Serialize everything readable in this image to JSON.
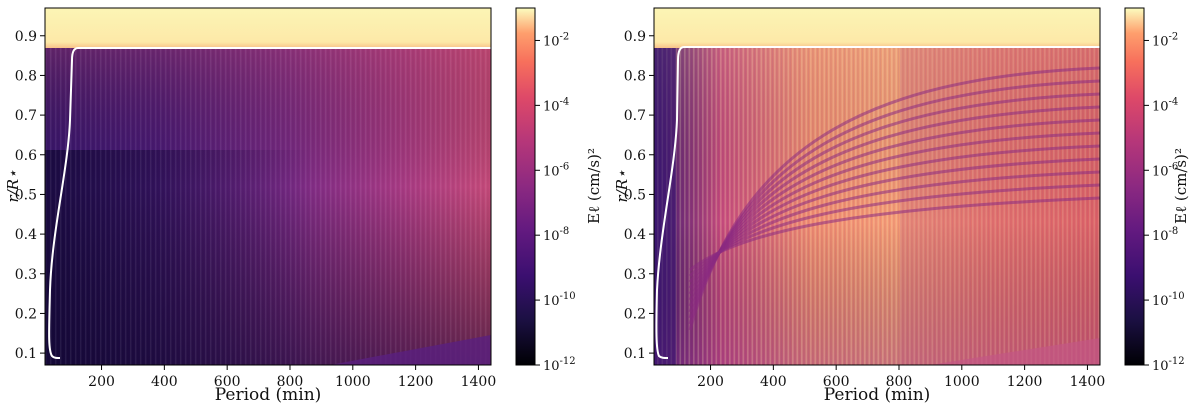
{
  "chart_data": [
    {
      "type": "heatmap",
      "panel": "left",
      "xlabel": "Period (min)",
      "ylabel": "r/R⋆",
      "xlim": [
        20,
        1440
      ],
      "ylim": [
        0.07,
        0.97
      ],
      "xticks": [
        200,
        400,
        600,
        800,
        1000,
        1200,
        1400
      ],
      "yticks": [
        0.1,
        0.2,
        0.3,
        0.4,
        0.5,
        0.6,
        0.7,
        0.8,
        0.9
      ],
      "colorbar": {
        "label": "Eℓ (cm/s)²",
        "scale": "log",
        "ticks": [
          "10-2",
          "10-4",
          "10-6",
          "10-8",
          "10-10",
          "10-12"
        ],
        "range_exp": [
          -12,
          -1
        ]
      },
      "white_curve": {
        "description": "boundary curve",
        "r_top": 0.87,
        "period_min_at_bottom": 40,
        "period_at_top_knee": 120
      }
    },
    {
      "type": "heatmap",
      "panel": "right",
      "xlabel": "Period (min)",
      "ylabel": "r/R⋆",
      "xlim": [
        20,
        1440
      ],
      "ylim": [
        0.07,
        0.97
      ],
      "xticks": [
        200,
        400,
        600,
        800,
        1000,
        1200,
        1400
      ],
      "yticks": [
        0.1,
        0.2,
        0.3,
        0.4,
        0.5,
        0.6,
        0.7,
        0.8,
        0.9
      ],
      "colorbar": {
        "label": "Eℓ (cm/s)²",
        "scale": "log",
        "ticks": [
          "10-2",
          "10-4",
          "10-6",
          "10-8",
          "10-10",
          "10-12"
        ],
        "range_exp": [
          -12,
          -1
        ]
      },
      "white_curve": {
        "description": "boundary curve",
        "r_top": 0.875,
        "period_min_at_bottom": 40,
        "period_at_top_knee": 130
      }
    }
  ]
}
